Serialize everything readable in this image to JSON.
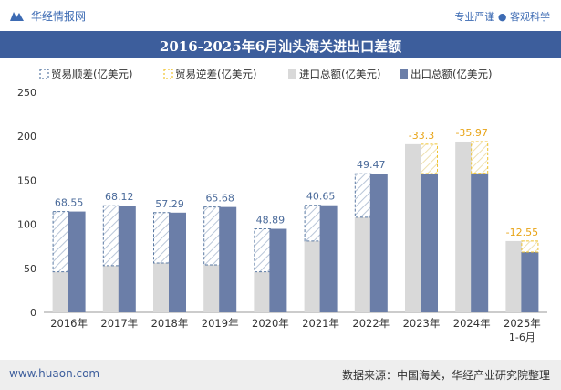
{
  "header": {
    "brand": "华经情报网",
    "tagline": "专业严谨 ● 客观科学"
  },
  "footer": {
    "website": "www.huaon.com",
    "source": "数据来源：中国海关，华经产业研究院整理"
  },
  "colors": {
    "surplus_border": "#5b7aa3",
    "deficit_border": "#f0c330",
    "import": "#d9d9d9",
    "export": "#6b7ea8",
    "title_bg": "#3d5e9c",
    "deficit_label": "#e8a417",
    "surplus_label": "#4a6a9a"
  },
  "chart_data": {
    "type": "bar",
    "title": "2016-2025年6月汕头海关进出口差额",
    "categories": [
      "2016年",
      "2017年",
      "2018年",
      "2019年",
      "2020年",
      "2021年",
      "2022年",
      "2023年",
      "2024年",
      "2025年"
    ],
    "category_sublabels": [
      "",
      "",
      "",
      "",
      "",
      "",
      "",
      "",
      "",
      "1-6月"
    ],
    "legend": [
      "贸易顺差(亿美元)",
      "贸易逆差(亿美元)",
      "进口总额(亿美元)",
      "出口总额(亿美元)"
    ],
    "series": [
      {
        "name": "进口总额(亿美元)",
        "values": [
          46,
          53,
          56,
          54,
          46,
          81,
          108,
          191,
          194,
          81
        ]
      },
      {
        "name": "出口总额(亿美元)",
        "values": [
          114.55,
          121.12,
          113.29,
          119.68,
          94.89,
          121.65,
          157.47,
          157.7,
          158.03,
          68.45
        ]
      }
    ],
    "balance": [
      68.55,
      68.12,
      57.29,
      65.68,
      48.89,
      40.65,
      49.47,
      -33.3,
      -35.97,
      -12.55
    ],
    "balance_labels": [
      "68.55",
      "68.12",
      "57.29",
      "65.68",
      "48.89",
      "40.65",
      "49.47",
      "-33.3",
      "-35.97",
      "-12.55"
    ],
    "yticks": [
      "0",
      "50",
      "100",
      "150",
      "200",
      "250"
    ],
    "ylim": [
      0,
      250
    ]
  }
}
